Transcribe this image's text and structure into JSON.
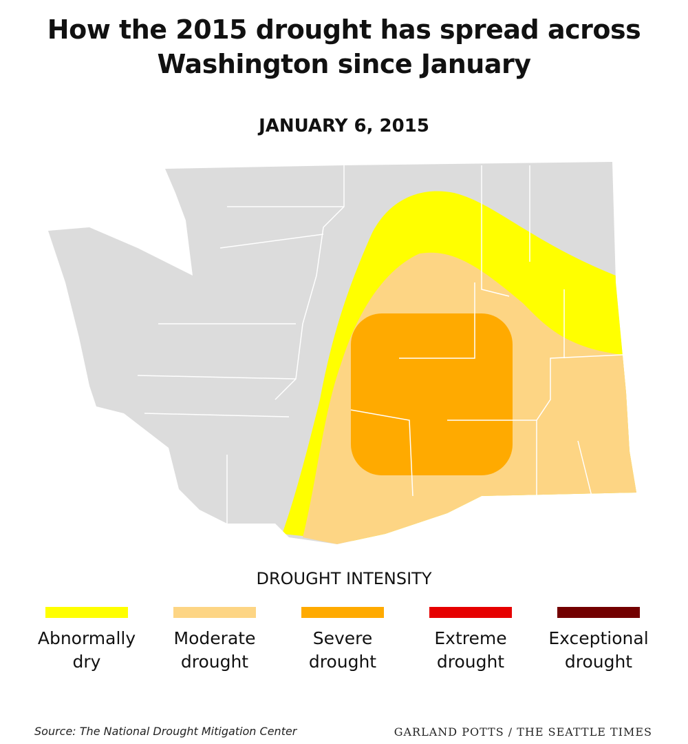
{
  "title": "How the 2015 drought has spread across Washington since January",
  "date": "JANUARY 6, 2015",
  "legend": {
    "title": "DROUGHT INTENSITY",
    "items": [
      {
        "label": "Abnormally dry",
        "color": "#ffff00"
      },
      {
        "label": "Moderate drought",
        "color": "#fdd584"
      },
      {
        "label": "Severe drought",
        "color": "#ffaa00"
      },
      {
        "label": "Extreme drought",
        "color": "#e60000"
      },
      {
        "label": "Exceptional drought",
        "color": "#730000"
      }
    ]
  },
  "source": "Source: The National Drought Mitigation Center",
  "credit": "GARLAND POTTS / THE SEATTLE TIMES"
}
